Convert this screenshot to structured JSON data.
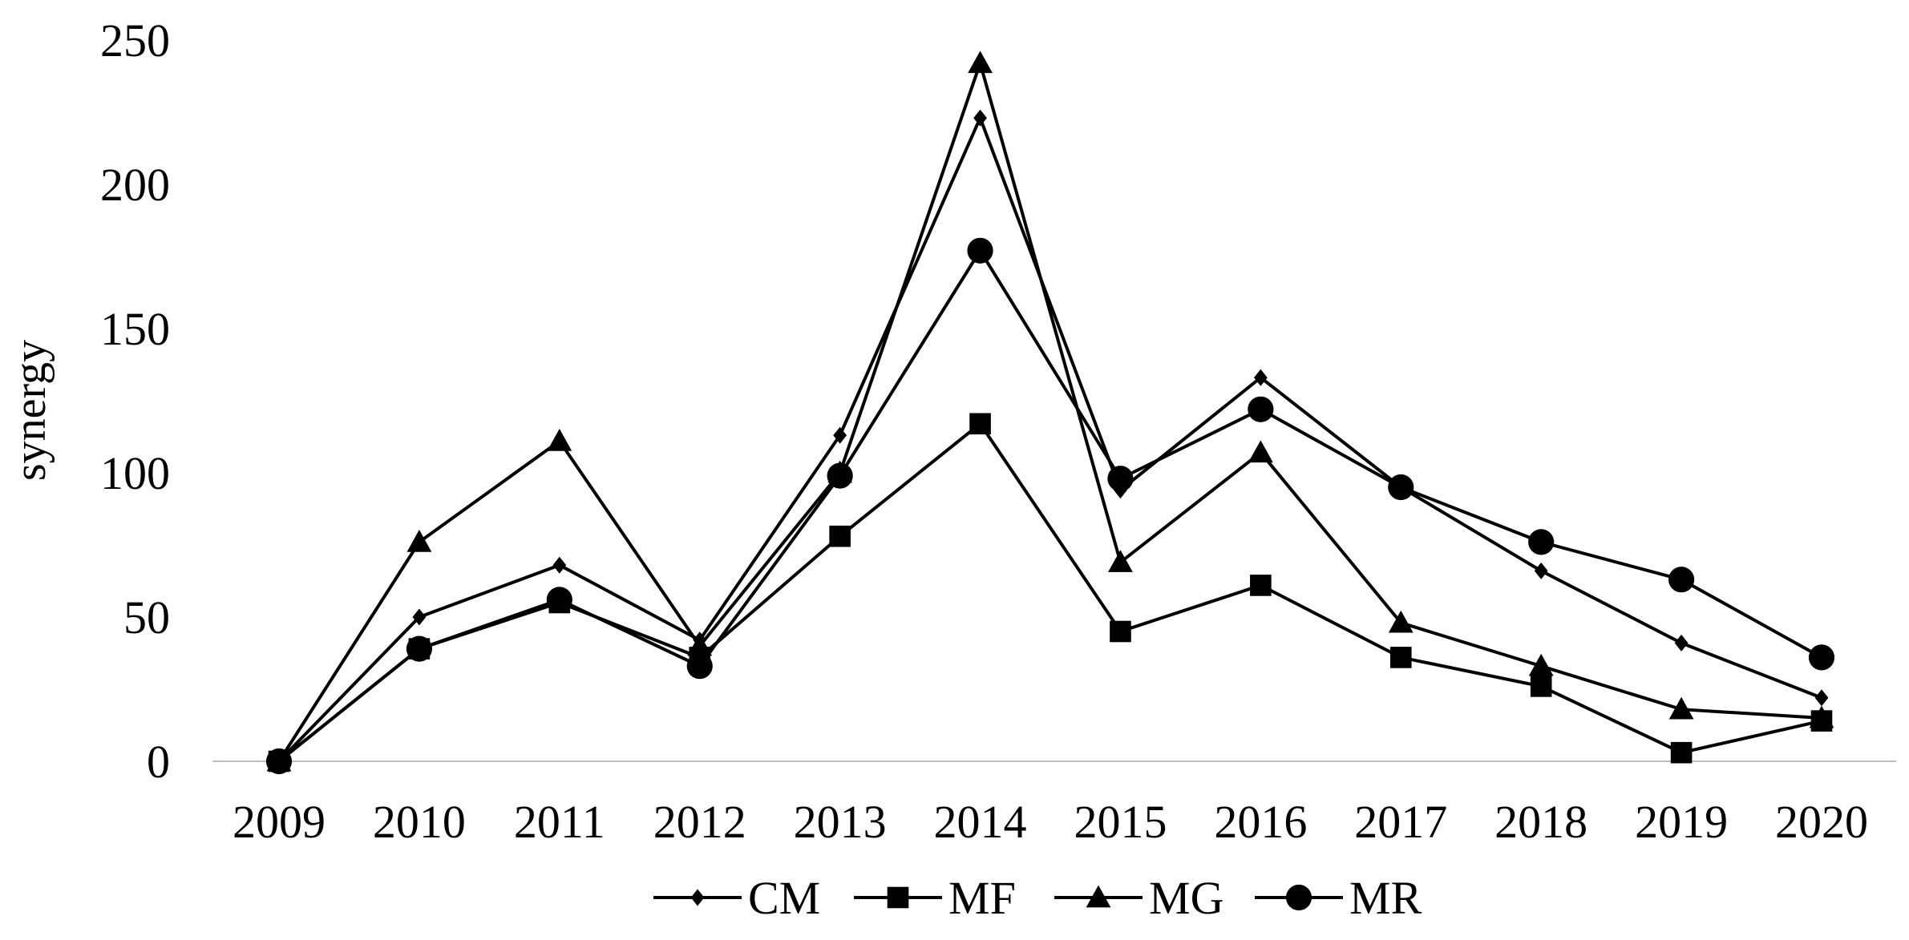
{
  "chart_data": {
    "type": "line",
    "title": "",
    "xlabel": "",
    "ylabel": "synergy",
    "x": [
      "2009",
      "2010",
      "2011",
      "2012",
      "2013",
      "2014",
      "2015",
      "2016",
      "2017",
      "2018",
      "2019",
      "2020"
    ],
    "ylim": [
      0,
      250
    ],
    "yticks": [
      "0",
      "50",
      "100",
      "150",
      "200",
      "250"
    ],
    "grid": false,
    "legend_position": "bottom-center",
    "line_color": "#000000",
    "series": [
      {
        "name": "CM",
        "marker": "diamond",
        "values": [
          0,
          50,
          68,
          42,
          113,
          223,
          94,
          133,
          95,
          66,
          41,
          22
        ]
      },
      {
        "name": "MF",
        "marker": "square",
        "values": [
          0,
          39,
          55,
          36,
          78,
          117,
          45,
          61,
          36,
          26,
          3,
          14
        ]
      },
      {
        "name": "MG",
        "marker": "triangle",
        "values": [
          0,
          76,
          111,
          40,
          100,
          242,
          69,
          107,
          48,
          33,
          18,
          15
        ]
      },
      {
        "name": "MR",
        "marker": "circle",
        "values": [
          0,
          39,
          56,
          33,
          99,
          177,
          98,
          122,
          95,
          76,
          63,
          36
        ]
      }
    ]
  }
}
